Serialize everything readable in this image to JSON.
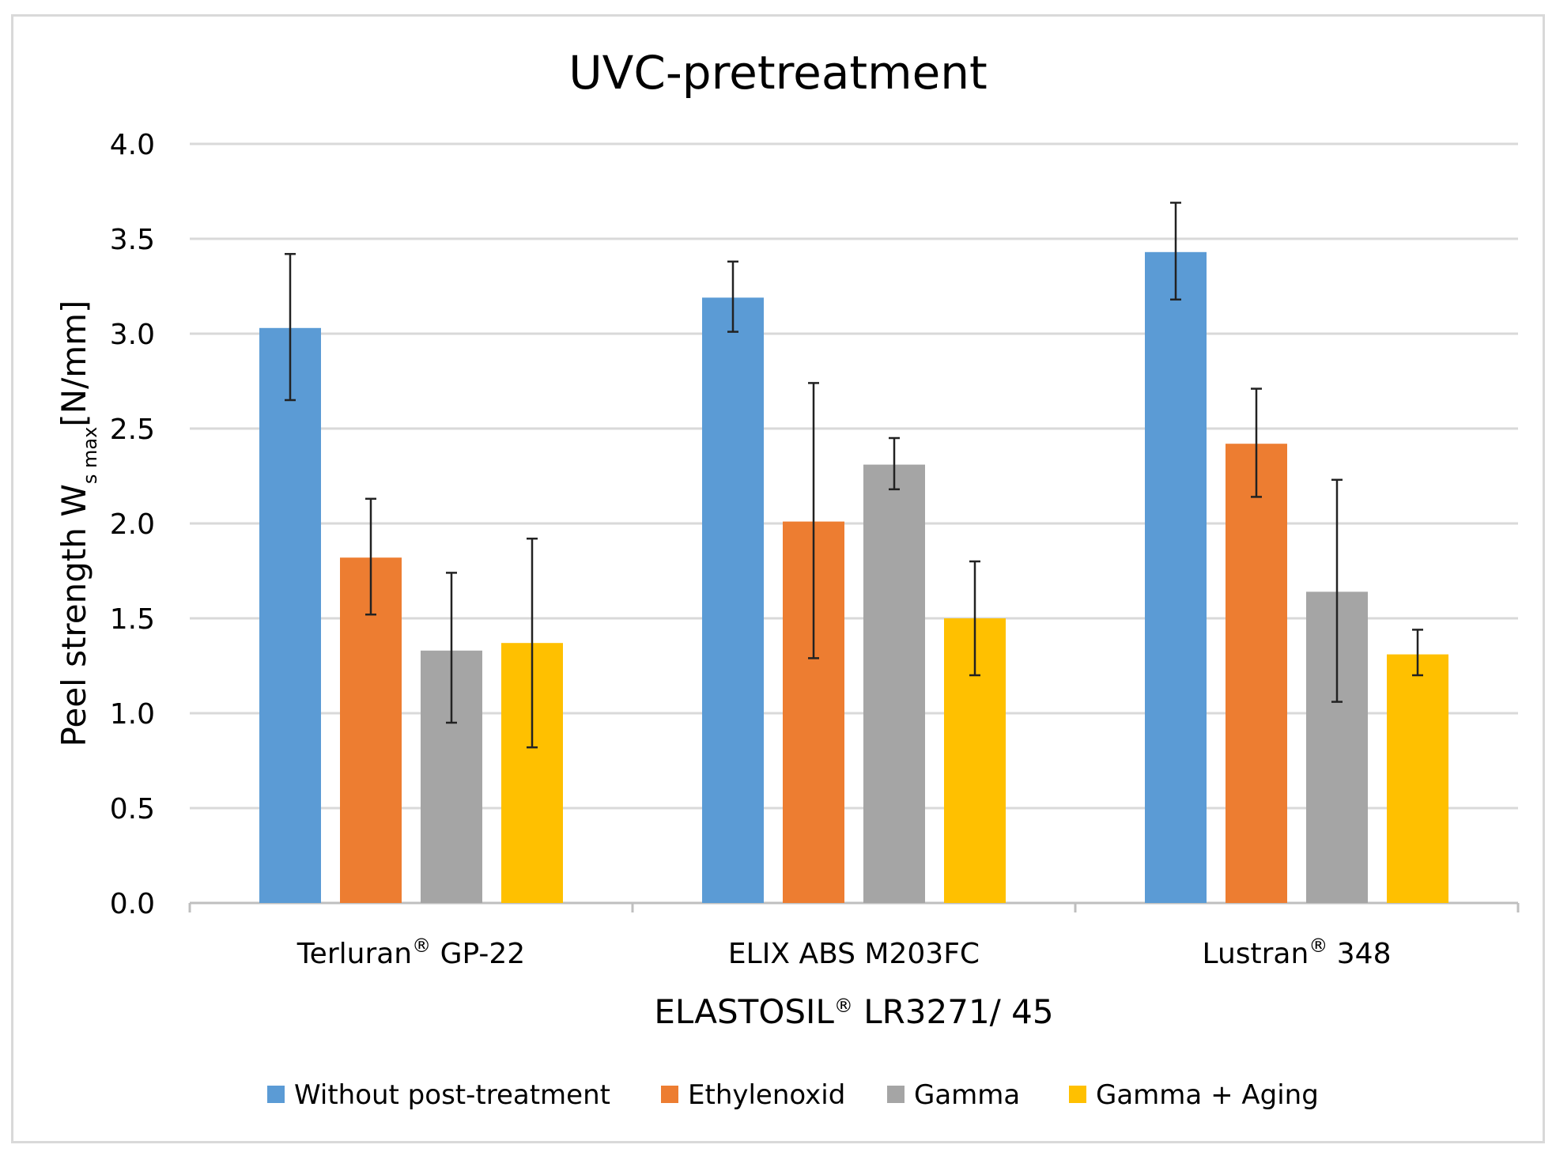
{
  "chart_data": {
    "type": "bar",
    "title": "UVC-pretreatment",
    "ylabel": {
      "prefix": "Peel strength W",
      "subscript": "s max",
      "suffix": "[N/mm]"
    },
    "xlabel": {
      "prefix": "ELASTOSIL",
      "reg": "®",
      "suffix": " LR3271/ 45"
    },
    "categories": [
      {
        "name": "Terluran",
        "reg": "®",
        "suffix": " GP-22"
      },
      {
        "name": "ELIX ABS M203FC",
        "reg": "",
        "suffix": ""
      },
      {
        "name": "Lustran",
        "reg": "®",
        "suffix": " 348"
      }
    ],
    "ylim": [
      0,
      4.0
    ],
    "yticks": [
      "0.0",
      "0.5",
      "1.0",
      "1.5",
      "2.0",
      "2.5",
      "3.0",
      "3.5",
      "4.0"
    ],
    "grid": true,
    "legend_position": "bottom",
    "series": [
      {
        "name": "Without post-treatment",
        "color": "#5b9bd5",
        "values": [
          3.03,
          3.19,
          3.43
        ],
        "err_low": [
          2.65,
          3.01,
          3.18
        ],
        "err_high": [
          3.42,
          3.38,
          3.69
        ]
      },
      {
        "name": "Ethylenoxid",
        "color": "#ed7d31",
        "values": [
          1.82,
          2.01,
          2.42
        ],
        "err_low": [
          1.52,
          1.29,
          2.14
        ],
        "err_high": [
          2.13,
          2.74,
          2.71
        ]
      },
      {
        "name": "Gamma",
        "color": "#a5a5a5",
        "values": [
          1.33,
          2.31,
          1.64
        ],
        "err_low": [
          0.95,
          2.18,
          1.06
        ],
        "err_high": [
          1.74,
          2.45,
          2.23
        ]
      },
      {
        "name": "Gamma + Aging",
        "color": "#ffc000",
        "values": [
          1.37,
          1.5,
          1.31
        ],
        "err_low": [
          0.82,
          1.2,
          1.2
        ],
        "err_high": [
          1.92,
          1.8,
          1.44
        ]
      }
    ]
  }
}
